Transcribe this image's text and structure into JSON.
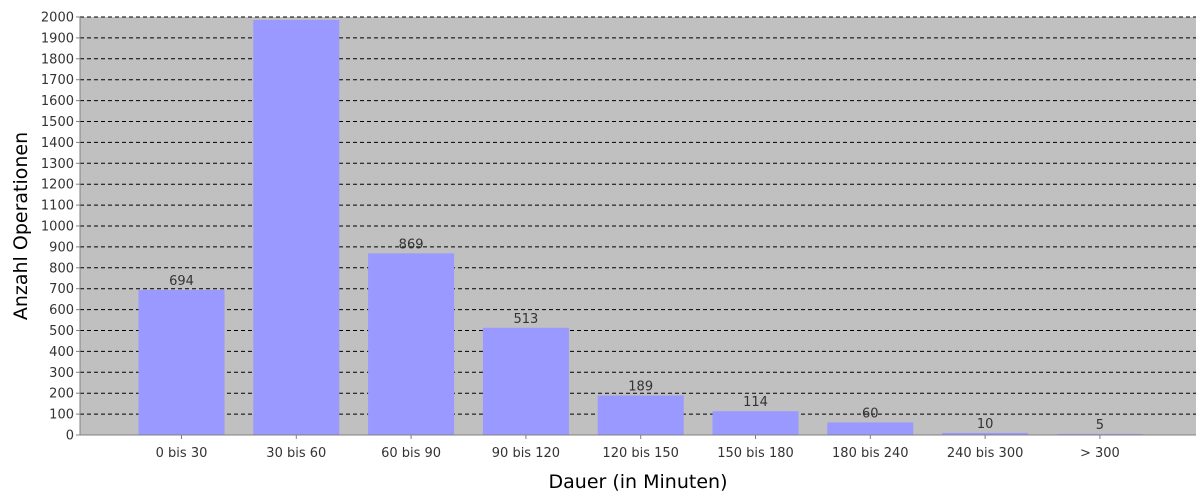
{
  "chart_data": {
    "type": "bar",
    "title": "",
    "xlabel": "Dauer (in Minuten)",
    "ylabel": "Anzahl Operationen",
    "categories": [
      "0 bis 30",
      "30 bis 60",
      "60 bis 90",
      "90 bis 120",
      "120 bis 150",
      "150 bis 180",
      "180 bis 240",
      "240 bis 300",
      "> 300"
    ],
    "values": [
      694,
      1986,
      869,
      513,
      189,
      114,
      60,
      10,
      5
    ],
    "data_labels": [
      "694",
      "",
      "869",
      "513",
      "189",
      "114",
      "60",
      "10",
      "5"
    ],
    "ylim": [
      0,
      2000
    ],
    "ytick_step": 100,
    "grid": true,
    "colors": {
      "bar": "#9999ff",
      "plot_background": "#c0c0c0",
      "grid": "#000000",
      "axis": "#808080"
    }
  }
}
